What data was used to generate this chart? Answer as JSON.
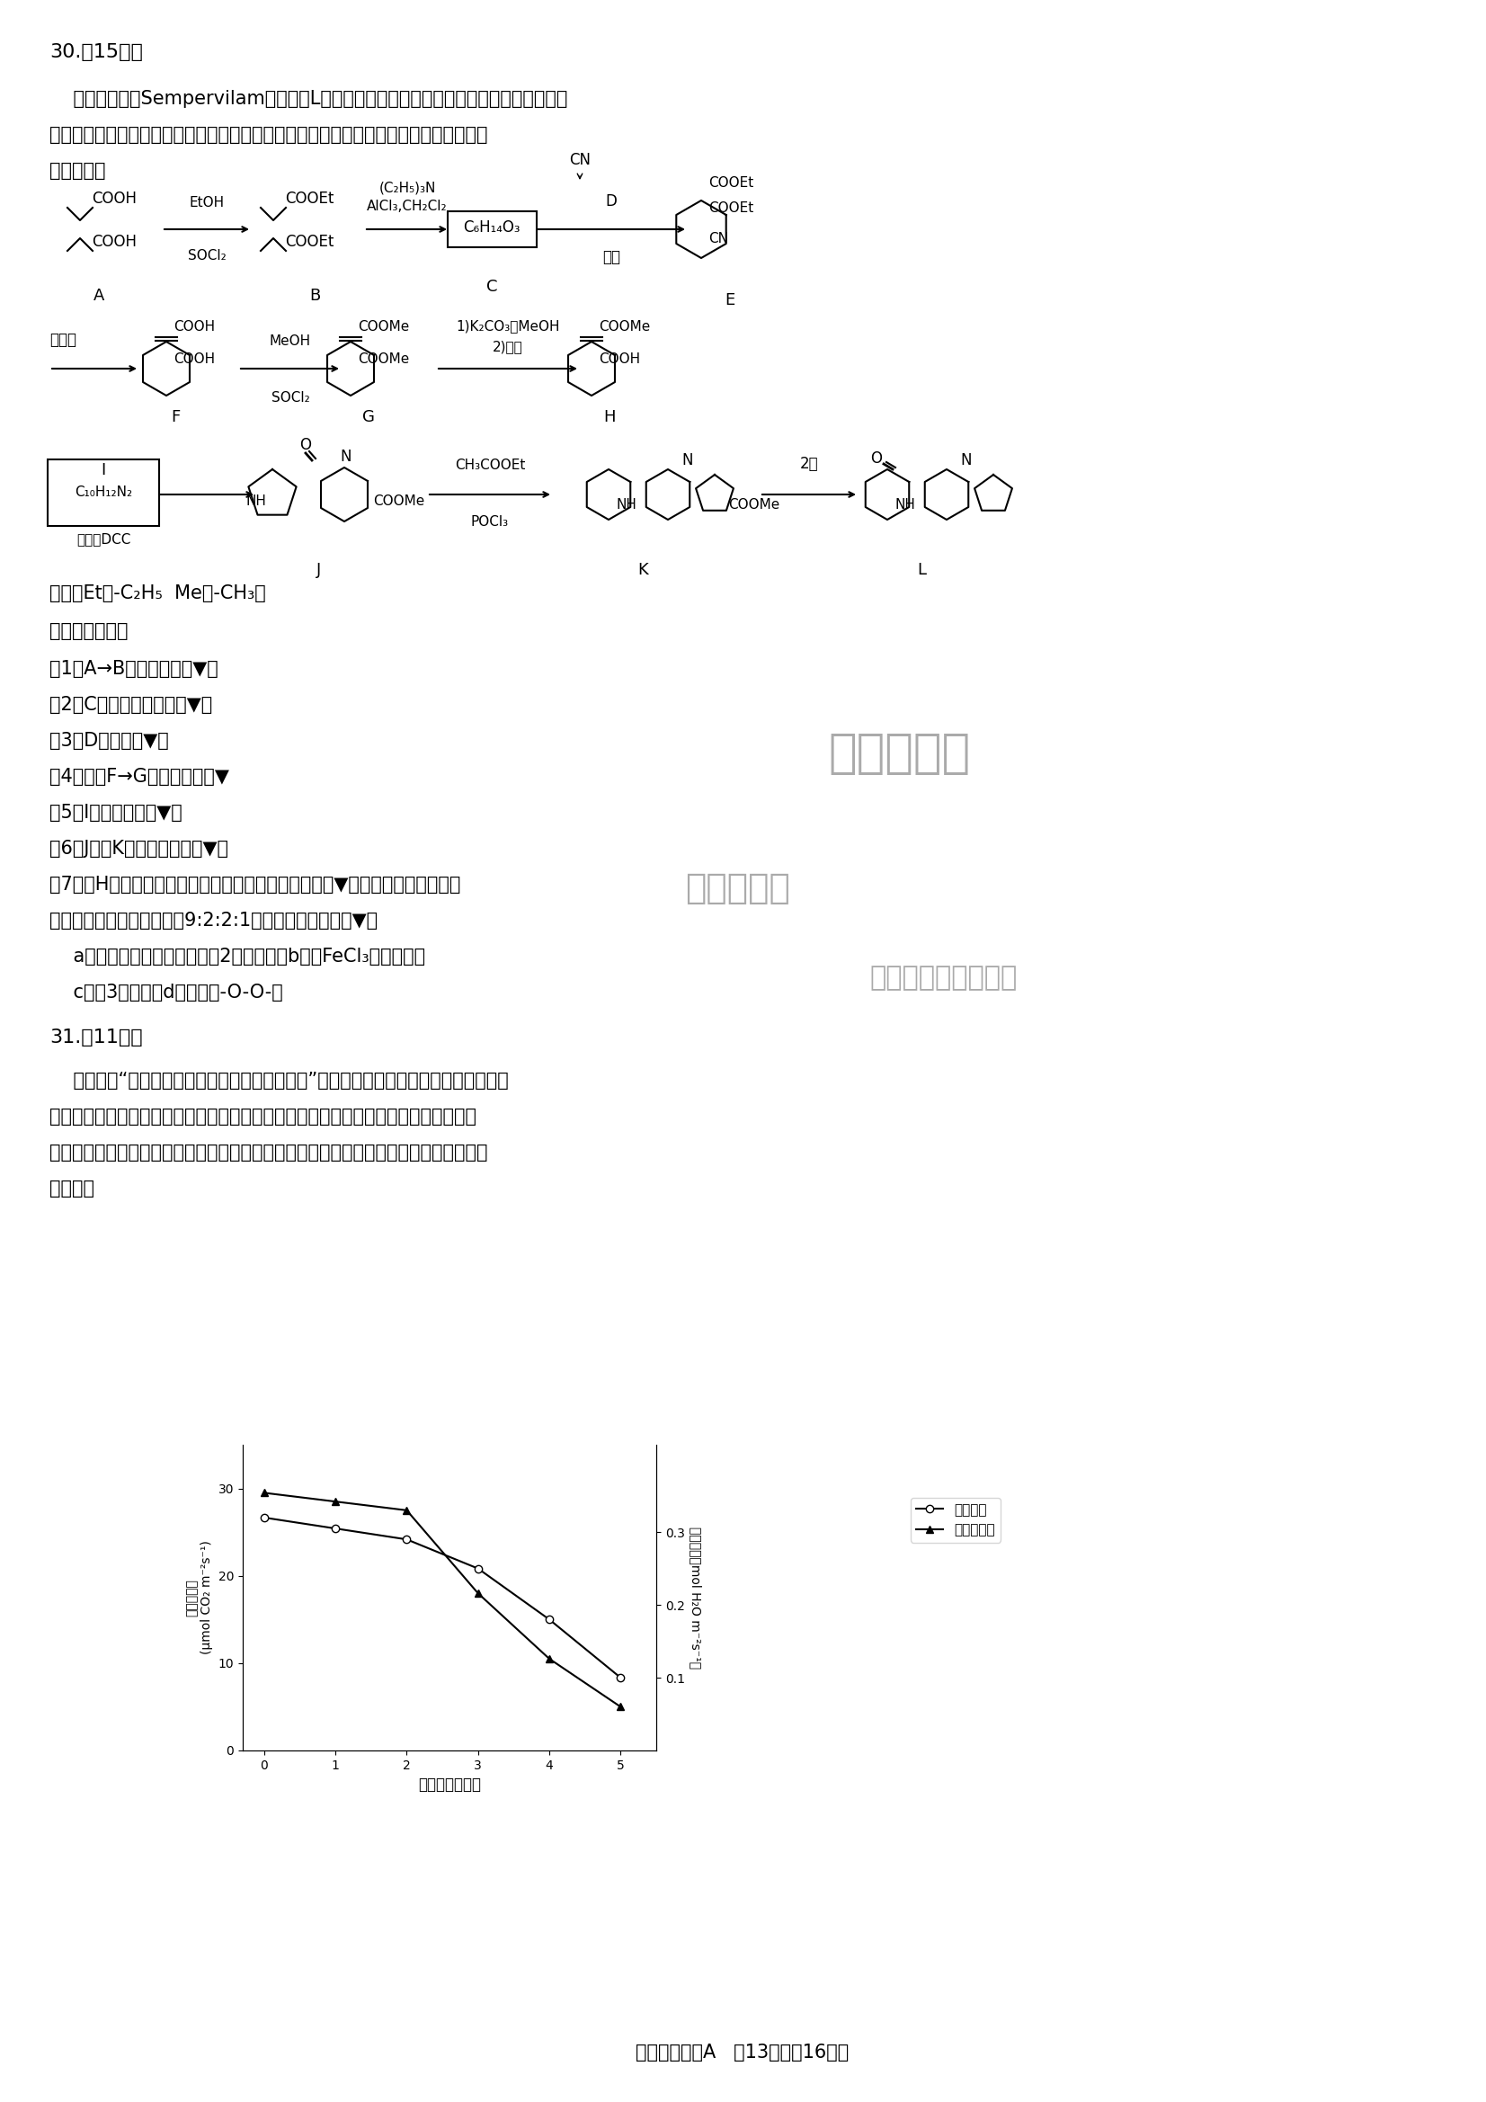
{
  "page_bg": "#ffffff",
  "title_q30": "30.（15分）",
  "para1_1": "    育亮宾类似物Sempervilam（化合物L）的药用价值非常广泛，具有良好的降血压、减肥",
  "para1_2": "以及治疗心脏疾病等功效。以下是一种高产率的合成路线（部分反应条件已简化，忽略立",
  "para1_3": "体化学）。",
  "known": "已知：Et：-C₂H₅  Me：-CH₃。",
  "questions_header": "回答下列问题：",
  "q1": "（1）A→B的反应类型为▼。",
  "q2": "（2）C中官能团的名称为▼。",
  "q3": "（3）D的名称为▼。",
  "q4": "（4）写出F→G的化学方程式▼",
  "q5": "（5）I的结构简式为▼。",
  "q6": "（6）J生成K还有一个产物是▼。",
  "q7_1": "（7）在H的同分异构体中，同时满足下列条件的总数为▼种。其中核磁共振氢谱",
  "q7_2": "显示四组峰，且峰面积比为9:2:2:1的分子的结构简式为▼。",
  "q7c1": "    a）含有一个苯环、苯环上有2个取代基；b）与FeCl₃反应显色；",
  "q7c2": "    c）含3个甲基；d）不存在-O-O-。",
  "title_q31": "31.（11分）",
  "para31_1": "    俗话说：“有收无收在于水，收多收少在于肥。”干旱缺水引起的水分胁迫是最常见的，",
  "para31_2": "也是对植物产量影响最大的。研究人员为研究土壤的干旱程度对植物光合作用影响的机",
  "para31_3": "制，以某水稺品种为材料在自然干旱的条件下进行盆栽实验，下图为本实验的部分结果。",
  "para31_4": "请回答：",
  "graph_x": [
    0,
    1,
    2,
    3,
    4,
    5
  ],
  "graph_stomatal": [
    0.32,
    0.305,
    0.29,
    0.25,
    0.18,
    0.1
  ],
  "graph_photosyn": [
    29.5,
    28.5,
    27.5,
    18.0,
    10.5,
    5.0
  ],
  "graph_xlabel": "胁迫时间（天）",
  "graph_ylabel_left": "净光合速率\n(μmol CO₂ m⁻²s⁻¹)",
  "graph_ylabel_right": "气孔导度（mol H₂O m⁻²s⁻¹）",
  "legend1": "气孔导度",
  "legend2": "净光合速率",
  "footer": "理科综合试题A   第13页（入16页）",
  "wm1": "高考早知道",
  "wm2": "试题小程序",
  "wm3": "一时间获取最新资料"
}
